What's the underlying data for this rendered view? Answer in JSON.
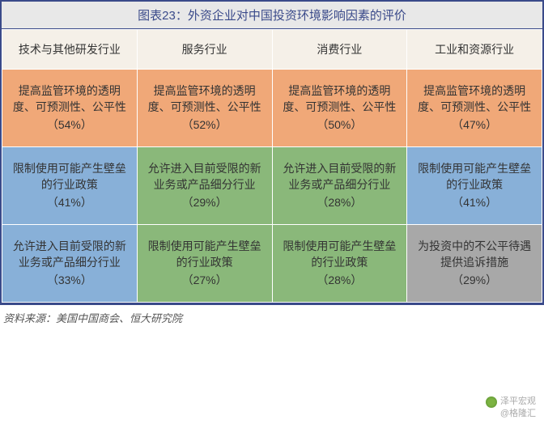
{
  "title": "图表23：外资企业对中国投资环境影响因素的评价",
  "headers": [
    "技术与其他研发行业",
    "服务行业",
    "消费行业",
    "工业和资源行业"
  ],
  "colors": {
    "header_bg": "#f5f0e8",
    "orange": "#f0a878",
    "green": "#8ab87a",
    "blue": "#88b0d8",
    "gray": "#a8a8a8"
  },
  "rows": [
    [
      {
        "text": "提高监管环境的透明度、可预测性、公平性",
        "pct": "（54%）",
        "color": "orange",
        "height": 96
      },
      {
        "text": "提高监管环境的透明度、可预测性、公平性",
        "pct": "（52%）",
        "color": "orange"
      },
      {
        "text": "提高监管环境的透明度、可预测性、公平性",
        "pct": "（50%）",
        "color": "orange"
      },
      {
        "text": "提高监管环境的透明度、可预测性、公平性",
        "pct": "（47%）",
        "color": "orange"
      }
    ],
    [
      {
        "text": "限制使用可能产生壁垒的行业政策",
        "pct": "（41%）",
        "color": "blue",
        "height": 96
      },
      {
        "text": "允许进入目前受限的新业务或产品细分行业",
        "pct": "（29%）",
        "color": "green"
      },
      {
        "text": "允许进入目前受限的新业务或产品细分行业",
        "pct": "（28%）",
        "color": "green"
      },
      {
        "text": "限制使用可能产生壁垒的行业政策",
        "pct": "（41%）",
        "color": "blue"
      }
    ],
    [
      {
        "text": "允许进入目前受限的新业务或产品细分行业",
        "pct": "（33%）",
        "color": "blue",
        "height": 96
      },
      {
        "text": "限制使用可能产生壁垒的行业政策",
        "pct": "（27%）",
        "color": "green"
      },
      {
        "text": "限制使用可能产生壁垒的行业政策",
        "pct": "（28%）",
        "color": "green"
      },
      {
        "text": "为投资中的不公平待遇提供追诉措施",
        "pct": "（29%）",
        "color": "gray"
      }
    ]
  ],
  "footer": "资料来源：美国中国商会、恒大研究院",
  "watermark": {
    "line1": "泽平宏观",
    "line2": "@格隆汇"
  }
}
